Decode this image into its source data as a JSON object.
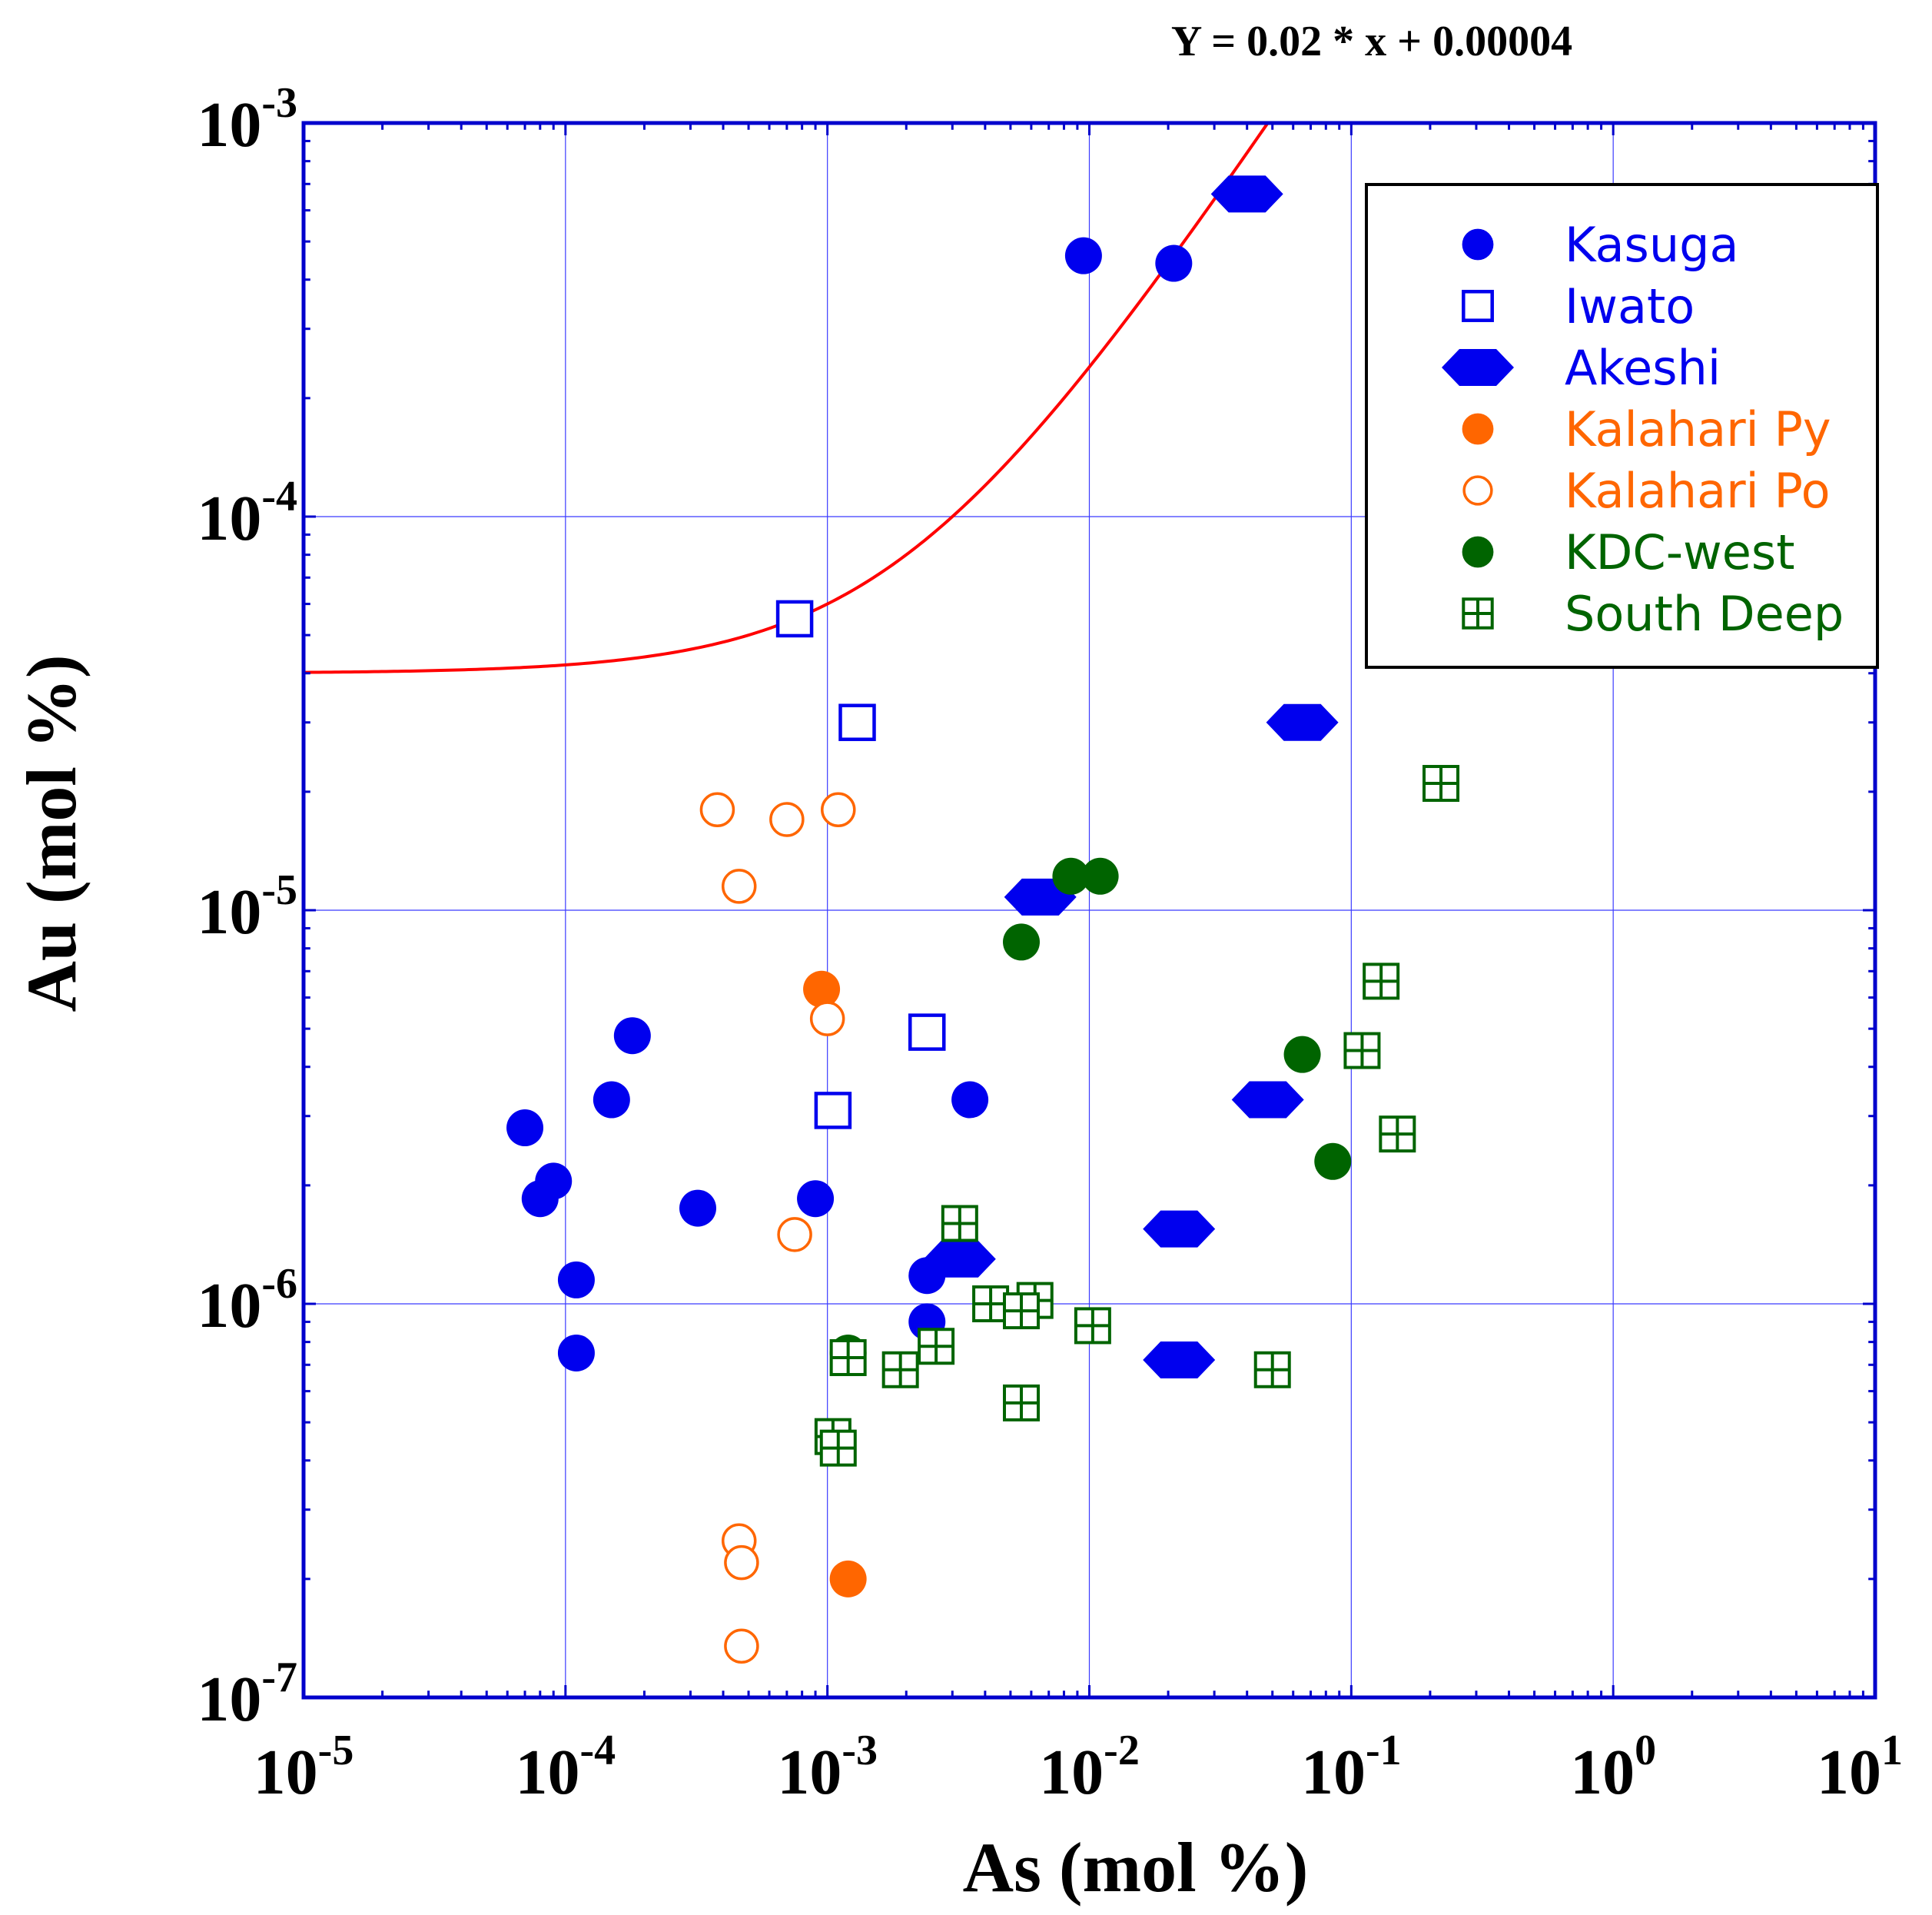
{
  "chart_data": {
    "type": "scatter",
    "title": "Y = 0.02 * x + 0.00004",
    "xlabel": "As (mol %)",
    "ylabel": "Au (mol %)",
    "xscale": "log",
    "yscale": "log",
    "xlim": [
      1e-05,
      10
    ],
    "ylim": [
      1e-07,
      0.001
    ],
    "x_tick_labels": [
      {
        "value": 1e-05,
        "base": "10",
        "exp": "-5"
      },
      {
        "value": 0.0001,
        "base": "10",
        "exp": "-4"
      },
      {
        "value": 0.001,
        "base": "10",
        "exp": "-3"
      },
      {
        "value": 0.01,
        "base": "10",
        "exp": "-2"
      },
      {
        "value": 0.1,
        "base": "10",
        "exp": "-1"
      },
      {
        "value": 1,
        "base": "10",
        "exp": "0"
      },
      {
        "value": 10,
        "base": "10",
        "exp": "1"
      }
    ],
    "y_tick_labels": [
      {
        "value": 1e-07,
        "base": "10",
        "exp": "-7"
      },
      {
        "value": 1e-06,
        "base": "10",
        "exp": "-6"
      },
      {
        "value": 1e-05,
        "base": "10",
        "exp": "-5"
      },
      {
        "value": 0.0001,
        "base": "10",
        "exp": "-4"
      },
      {
        "value": 0.001,
        "base": "10",
        "exp": "-3"
      }
    ],
    "grid": true,
    "legend_position": "top-right",
    "fit_line": {
      "label": "Y = 0.02 * x + 0.00004",
      "slope": 0.02,
      "intercept": 4e-05,
      "color": "#ff0000"
    },
    "series": [
      {
        "name": "Kasuga",
        "marker": "filled-circle",
        "color": "#0000ee",
        "points": [
          [
            0.0095,
            0.00046
          ],
          [
            0.021,
            0.00044
          ],
          [
            7e-05,
            2.8e-06
          ],
          [
            9e-05,
            2.05e-06
          ],
          [
            8e-05,
            1.85e-06
          ],
          [
            0.00015,
            3.3e-06
          ],
          [
            0.00018,
            4.8e-06
          ],
          [
            0.00011,
            1.15e-06
          ],
          [
            0.00011,
            7.5e-07
          ],
          [
            0.00032,
            1.75e-06
          ],
          [
            0.0009,
            1.85e-06
          ],
          [
            0.0024,
            1.18e-06
          ],
          [
            0.0024,
            9e-07
          ],
          [
            0.0035,
            3.3e-06
          ]
        ]
      },
      {
        "name": "Iwato",
        "marker": "open-square",
        "color": "#0000ee",
        "points": [
          [
            0.00075,
            5.5e-05
          ],
          [
            0.0013,
            3e-05
          ],
          [
            0.0024,
            4.9e-06
          ],
          [
            0.00105,
            3.1e-06
          ]
        ]
      },
      {
        "name": "Akeshi",
        "marker": "hexagon",
        "color": "#0000ee",
        "points": [
          [
            0.04,
            0.00066
          ],
          [
            0.065,
            3e-05
          ],
          [
            0.0065,
            1.08e-05
          ],
          [
            0.048,
            3.3e-06
          ],
          [
            0.022,
            1.55e-06
          ],
          [
            0.0032,
            1.3e-06
          ],
          [
            0.022,
            7.2e-07
          ]
        ]
      },
      {
        "name": "Kalahari Py",
        "marker": "filled-circle",
        "color": "#ff6600",
        "points": [
          [
            0.00095,
            6.3e-06
          ],
          [
            0.0012,
            2e-07
          ]
        ]
      },
      {
        "name": "Kalahari Po",
        "marker": "open-circle",
        "color": "#ff6600",
        "points": [
          [
            0.00038,
            1.8e-05
          ],
          [
            0.0007,
            1.7e-05
          ],
          [
            0.0011,
            1.8e-05
          ],
          [
            0.00046,
            1.15e-05
          ],
          [
            0.001,
            5.3e-06
          ],
          [
            0.00075,
            1.5e-06
          ],
          [
            0.00046,
            2.5e-07
          ],
          [
            0.00047,
            2.2e-07
          ],
          [
            0.00047,
            1.35e-07
          ]
        ]
      },
      {
        "name": "KDC-west",
        "marker": "filled-circle",
        "color": "#006400",
        "points": [
          [
            0.0085,
            1.22e-05
          ],
          [
            0.011,
            1.22e-05
          ],
          [
            0.0055,
            8.3e-06
          ],
          [
            0.065,
            4.3e-06
          ],
          [
            0.085,
            2.3e-06
          ],
          [
            0.0012,
            7.5e-07
          ]
        ]
      },
      {
        "name": "South Deep",
        "marker": "open-square-cross",
        "color": "#006400",
        "points": [
          [
            0.22,
            2.1e-05
          ],
          [
            0.13,
            6.6e-06
          ],
          [
            0.11,
            4.4e-06
          ],
          [
            0.15,
            2.7e-06
          ],
          [
            0.0032,
            1.6e-06
          ],
          [
            0.0042,
            1e-06
          ],
          [
            0.0062,
            1.02e-06
          ],
          [
            0.0055,
            9.6e-07
          ],
          [
            0.0103,
            8.8e-07
          ],
          [
            0.0026,
            7.8e-07
          ],
          [
            0.0012,
            7.3e-07
          ],
          [
            0.0019,
            6.8e-07
          ],
          [
            0.05,
            6.8e-07
          ],
          [
            0.0055,
            5.6e-07
          ],
          [
            0.00105,
            4.6e-07
          ],
          [
            0.0011,
            4.3e-07
          ]
        ]
      }
    ]
  }
}
